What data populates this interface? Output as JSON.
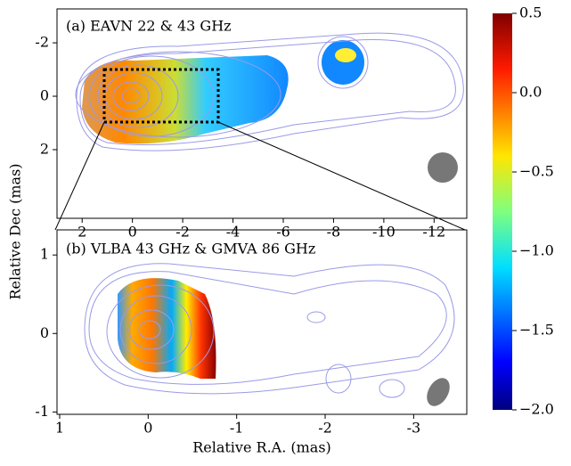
{
  "chart_data": [
    {
      "type": "image",
      "title": "(a) EAVN 22 & 43 GHz",
      "ylabel": "Relative Dec (mas)",
      "xlim": [
        3,
        -13.3
      ],
      "ylim": [
        -3.27,
        4.57
      ],
      "xticks": [
        2,
        0,
        -2,
        -4,
        -6,
        -8,
        -10,
        -12
      ],
      "yticks": [
        -2,
        0,
        2
      ]
    },
    {
      "type": "image",
      "title": "(b) VLBA 43 GHz & GMVA 86 GHz",
      "xlabel": "Relative R.A. (mas)",
      "xlim": [
        1.03,
        -3.6
      ],
      "ylim": [
        1.32,
        -1.03
      ],
      "xticks": [
        1,
        0,
        -1,
        -2,
        -3
      ],
      "yticks": [
        1,
        0,
        -1
      ]
    },
    {
      "type": "colorbar",
      "ylim": [
        -2.0,
        0.5
      ],
      "yticks": [
        {
          "value": 0.5,
          "label": "0.5"
        },
        {
          "value": 0,
          "label": "0.0"
        },
        {
          "value": -0.5,
          "label": "−0.5"
        },
        {
          "value": -1,
          "label": "−1.0"
        },
        {
          "value": -1.5,
          "label": "−1.5"
        },
        {
          "value": -2,
          "label": "−2.0"
        }
      ]
    }
  ]
}
